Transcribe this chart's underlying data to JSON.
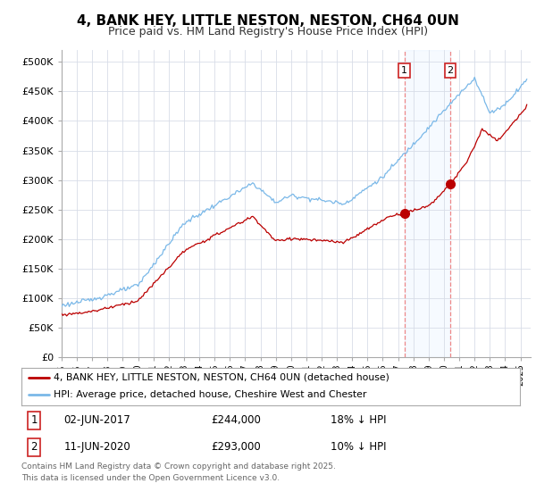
{
  "title": "4, BANK HEY, LITTLE NESTON, NESTON, CH64 0UN",
  "subtitle": "Price paid vs. HM Land Registry's House Price Index (HPI)",
  "title_fontsize": 11,
  "subtitle_fontsize": 9,
  "ylim": [
    0,
    520000
  ],
  "yticks": [
    0,
    50000,
    100000,
    150000,
    200000,
    250000,
    300000,
    350000,
    400000,
    450000,
    500000
  ],
  "ytick_labels": [
    "£0",
    "£50K",
    "£100K",
    "£150K",
    "£200K",
    "£250K",
    "£300K",
    "£350K",
    "£400K",
    "£450K",
    "£500K"
  ],
  "bg_color": "#ffffff",
  "plot_bg_color": "#ffffff",
  "grid_color": "#d8dde8",
  "hpi_color": "#7ab8e8",
  "price_color": "#bb0000",
  "vline_color": "#ee8888",
  "span_color": "#ddeeff",
  "legend_line1": "4, BANK HEY, LITTLE NESTON, NESTON, CH64 0UN (detached house)",
  "legend_line2": "HPI: Average price, detached house, Cheshire West and Chester",
  "footnote": "Contains HM Land Registry data © Crown copyright and database right 2025.\nThis data is licensed under the Open Government Licence v3.0."
}
